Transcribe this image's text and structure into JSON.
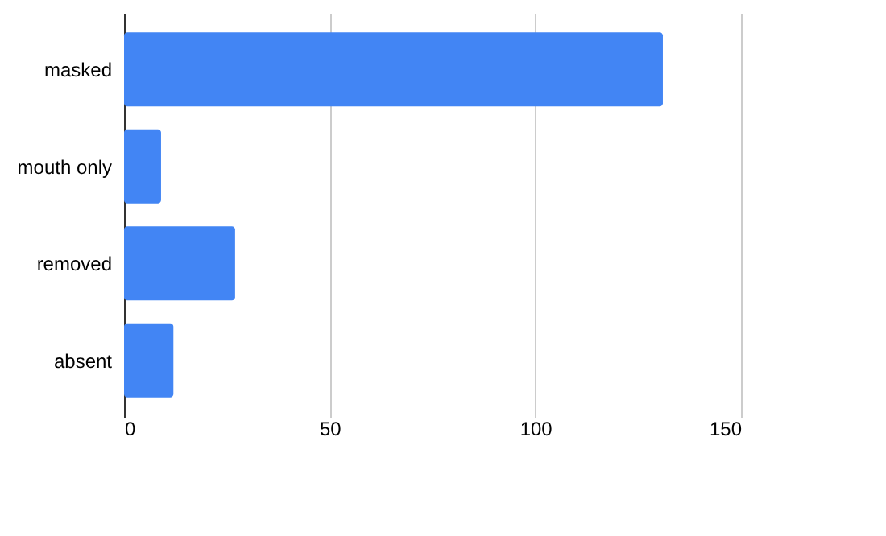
{
  "chart_data": {
    "type": "bar",
    "orientation": "horizontal",
    "categories": [
      "masked",
      "mouth only",
      "removed",
      "absent"
    ],
    "values": [
      131,
      9,
      27,
      12
    ],
    "color": "#4285f4",
    "xlim": [
      0,
      150
    ],
    "xticks": [
      0,
      50,
      100,
      150
    ],
    "grid": "x"
  }
}
